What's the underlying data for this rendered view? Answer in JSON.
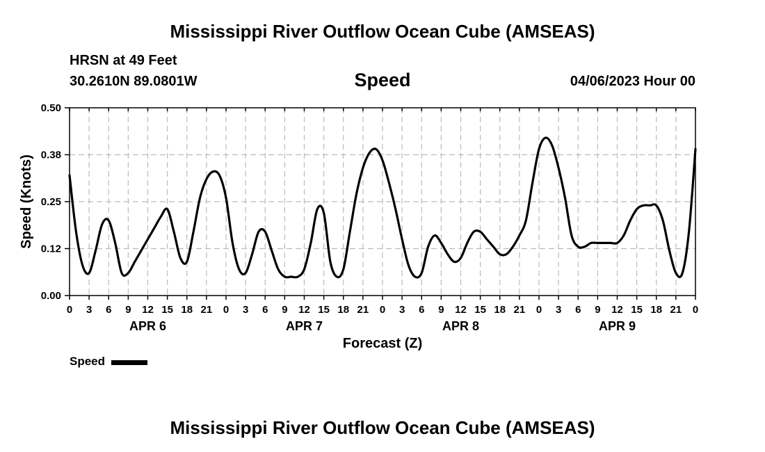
{
  "header": {
    "title": "Mississippi River Outflow Ocean Cube (AMSEAS)",
    "station": "HRSN at 49 Feet",
    "coords": "30.2610N  89.0801W",
    "variable": "Speed",
    "timestamp": "04/06/2023 Hour 00"
  },
  "footer": {
    "title": "Mississippi River Outflow Ocean Cube (AMSEAS)"
  },
  "legend": {
    "label": "Speed",
    "color": "#000000"
  },
  "chart_data": {
    "type": "line",
    "title": "Speed",
    "xlabel": "Forecast (Z)",
    "ylabel": "Speed (Knots)",
    "ylim": [
      0,
      0.5
    ],
    "yticks": [
      "0.00",
      "0.12",
      "0.25",
      "0.38",
      "0.50"
    ],
    "xlim_hours": [
      0,
      96
    ],
    "xtick_labels": [
      "0",
      "3",
      "6",
      "9",
      "12",
      "15",
      "18",
      "21",
      "0",
      "3",
      "6",
      "9",
      "12",
      "15",
      "18",
      "21",
      "0",
      "3",
      "6",
      "9",
      "12",
      "15",
      "18",
      "21",
      "0",
      "3",
      "6",
      "9",
      "12",
      "15",
      "18",
      "21",
      "0"
    ],
    "day_labels": [
      {
        "label": "APR 6",
        "hour": 12
      },
      {
        "label": "APR 7",
        "hour": 36
      },
      {
        "label": "APR 8",
        "hour": 60
      },
      {
        "label": "APR 9",
        "hour": 84
      }
    ],
    "grid": true,
    "series": [
      {
        "name": "Speed",
        "x": [
          0,
          1,
          2,
          3,
          4,
          5,
          6,
          7,
          8,
          9,
          10,
          11,
          12,
          13,
          14,
          15,
          16,
          17,
          18,
          19,
          20,
          21,
          22,
          23,
          24,
          25,
          26,
          27,
          28,
          29,
          30,
          31,
          32,
          33,
          34,
          35,
          36,
          37,
          38,
          39,
          40,
          41,
          42,
          43,
          44,
          45,
          46,
          47,
          48,
          49,
          50,
          51,
          52,
          53,
          54,
          55,
          56,
          57,
          58,
          59,
          60,
          61,
          62,
          63,
          64,
          65,
          66,
          67,
          68,
          69,
          70,
          71,
          72,
          73,
          74,
          75,
          76,
          77,
          78,
          79,
          80,
          81,
          82,
          83,
          84,
          85,
          86,
          87,
          88,
          89,
          90,
          91,
          92,
          93,
          94,
          95,
          96
        ],
        "y": [
          0.32,
          0.17,
          0.08,
          0.06,
          0.12,
          0.19,
          0.2,
          0.14,
          0.06,
          0.06,
          0.09,
          0.12,
          0.15,
          0.18,
          0.21,
          0.23,
          0.17,
          0.1,
          0.09,
          0.17,
          0.26,
          0.31,
          0.33,
          0.32,
          0.26,
          0.14,
          0.07,
          0.06,
          0.11,
          0.17,
          0.17,
          0.12,
          0.07,
          0.05,
          0.05,
          0.05,
          0.07,
          0.14,
          0.23,
          0.22,
          0.09,
          0.05,
          0.07,
          0.17,
          0.27,
          0.34,
          0.38,
          0.39,
          0.36,
          0.3,
          0.23,
          0.15,
          0.08,
          0.05,
          0.06,
          0.13,
          0.16,
          0.14,
          0.11,
          0.09,
          0.1,
          0.14,
          0.17,
          0.17,
          0.15,
          0.13,
          0.11,
          0.11,
          0.13,
          0.16,
          0.2,
          0.3,
          0.39,
          0.42,
          0.4,
          0.34,
          0.26,
          0.16,
          0.13,
          0.13,
          0.14,
          0.14,
          0.14,
          0.14,
          0.14,
          0.16,
          0.2,
          0.23,
          0.24,
          0.24,
          0.24,
          0.2,
          0.12,
          0.06,
          0.06,
          0.17,
          0.39
        ]
      }
    ]
  }
}
